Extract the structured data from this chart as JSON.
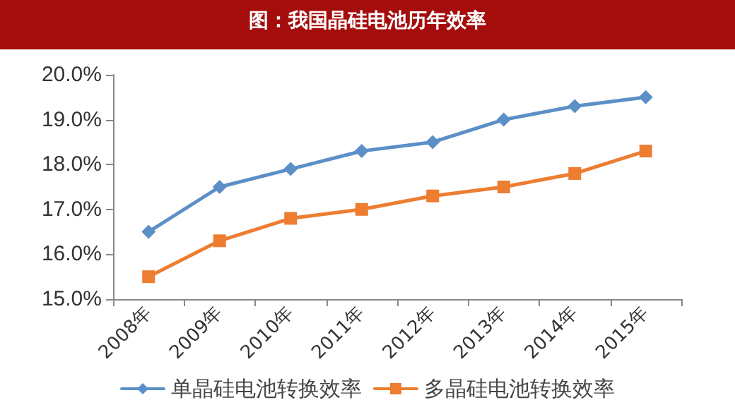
{
  "chart_data": {
    "type": "line",
    "title": "图：我国晶硅电池历年效率",
    "categories": [
      "2008年",
      "2009年",
      "2010年",
      "2011年",
      "2012年",
      "2013年",
      "2014年",
      "2015年"
    ],
    "series": [
      {
        "name": "单晶硅电池转换效率",
        "color": "#5b8fc7",
        "marker": "diamond",
        "values": [
          16.5,
          17.5,
          17.9,
          18.3,
          18.5,
          19.0,
          19.3,
          19.5
        ]
      },
      {
        "name": "多晶硅电池转换效率",
        "color": "#ed7d31",
        "marker": "square",
        "values": [
          15.5,
          16.3,
          16.8,
          17.0,
          17.3,
          17.5,
          17.8,
          18.3
        ]
      }
    ],
    "ylim": [
      15,
      20
    ],
    "yticks": [
      {
        "value": 15,
        "label": "15.0%"
      },
      {
        "value": 16,
        "label": "16.0%"
      },
      {
        "value": 17,
        "label": "17.0%"
      },
      {
        "value": 18,
        "label": "18.0%"
      },
      {
        "value": 19,
        "label": "19.0%"
      },
      {
        "value": 20,
        "label": "20.0%"
      }
    ],
    "grid": false,
    "legend": "bottom",
    "line_style": "solid"
  }
}
